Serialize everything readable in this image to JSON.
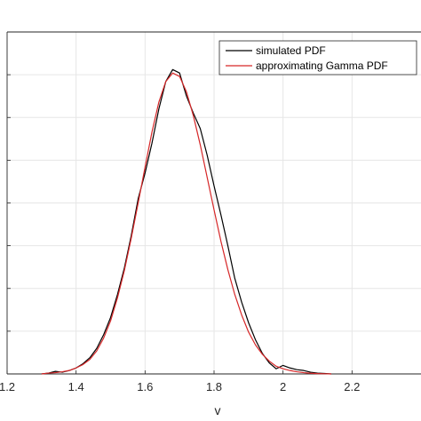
{
  "chart_data": {
    "type": "line",
    "xlabel": "v",
    "xlim": [
      1.2,
      2.4
    ],
    "ylim": [
      0,
      4.0
    ],
    "x_ticks": [
      1.2,
      1.4,
      1.6,
      1.8,
      2.0,
      2.2
    ],
    "x_tick_labels": [
      "1.2",
      "1.4",
      "1.6",
      "1.8",
      "2",
      "2.2"
    ],
    "y_ticks": [
      0.5,
      1.0,
      1.5,
      2.0,
      2.5,
      3.0,
      3.5
    ],
    "grid": true,
    "legend_position": "top-right",
    "colors": {
      "simulated": "#000000",
      "gamma": "#d62728",
      "grid": "#e6e6e6",
      "axis": "#262626"
    },
    "series": [
      {
        "name": "simulated PDF",
        "x": [
          1.3,
          1.32,
          1.34,
          1.36,
          1.38,
          1.4,
          1.42,
          1.44,
          1.46,
          1.48,
          1.5,
          1.52,
          1.54,
          1.56,
          1.58,
          1.6,
          1.62,
          1.64,
          1.66,
          1.68,
          1.7,
          1.72,
          1.74,
          1.76,
          1.78,
          1.8,
          1.82,
          1.84,
          1.86,
          1.88,
          1.9,
          1.92,
          1.94,
          1.96,
          1.98,
          2.0,
          2.02,
          2.04,
          2.06,
          2.08,
          2.1,
          2.12,
          2.14
        ],
        "y": [
          0.0,
          0.01,
          0.03,
          0.02,
          0.04,
          0.07,
          0.12,
          0.19,
          0.3,
          0.46,
          0.66,
          0.93,
          1.24,
          1.62,
          2.05,
          2.35,
          2.7,
          3.1,
          3.42,
          3.56,
          3.52,
          3.25,
          3.05,
          2.87,
          2.56,
          2.2,
          1.86,
          1.5,
          1.12,
          0.84,
          0.6,
          0.4,
          0.24,
          0.13,
          0.06,
          0.1,
          0.07,
          0.05,
          0.04,
          0.02,
          0.01,
          0.005,
          0.0
        ]
      },
      {
        "name": "approximating Gamma PDF",
        "x": [
          1.3,
          1.32,
          1.34,
          1.36,
          1.38,
          1.4,
          1.42,
          1.44,
          1.46,
          1.48,
          1.5,
          1.52,
          1.54,
          1.56,
          1.58,
          1.6,
          1.62,
          1.64,
          1.66,
          1.68,
          1.7,
          1.72,
          1.74,
          1.76,
          1.78,
          1.8,
          1.82,
          1.84,
          1.86,
          1.88,
          1.9,
          1.92,
          1.94,
          1.96,
          1.98,
          2.0,
          2.02,
          2.04,
          2.06,
          2.08,
          2.1,
          2.12,
          2.14
        ],
        "y": [
          0.0,
          0.01,
          0.015,
          0.025,
          0.04,
          0.07,
          0.11,
          0.17,
          0.27,
          0.42,
          0.62,
          0.89,
          1.21,
          1.59,
          2.0,
          2.42,
          2.83,
          3.18,
          3.42,
          3.52,
          3.48,
          3.3,
          3.02,
          2.68,
          2.3,
          1.92,
          1.55,
          1.22,
          0.93,
          0.69,
          0.49,
          0.34,
          0.23,
          0.15,
          0.09,
          0.06,
          0.04,
          0.025,
          0.015,
          0.008,
          0.004,
          0.002,
          0.0
        ]
      }
    ]
  }
}
